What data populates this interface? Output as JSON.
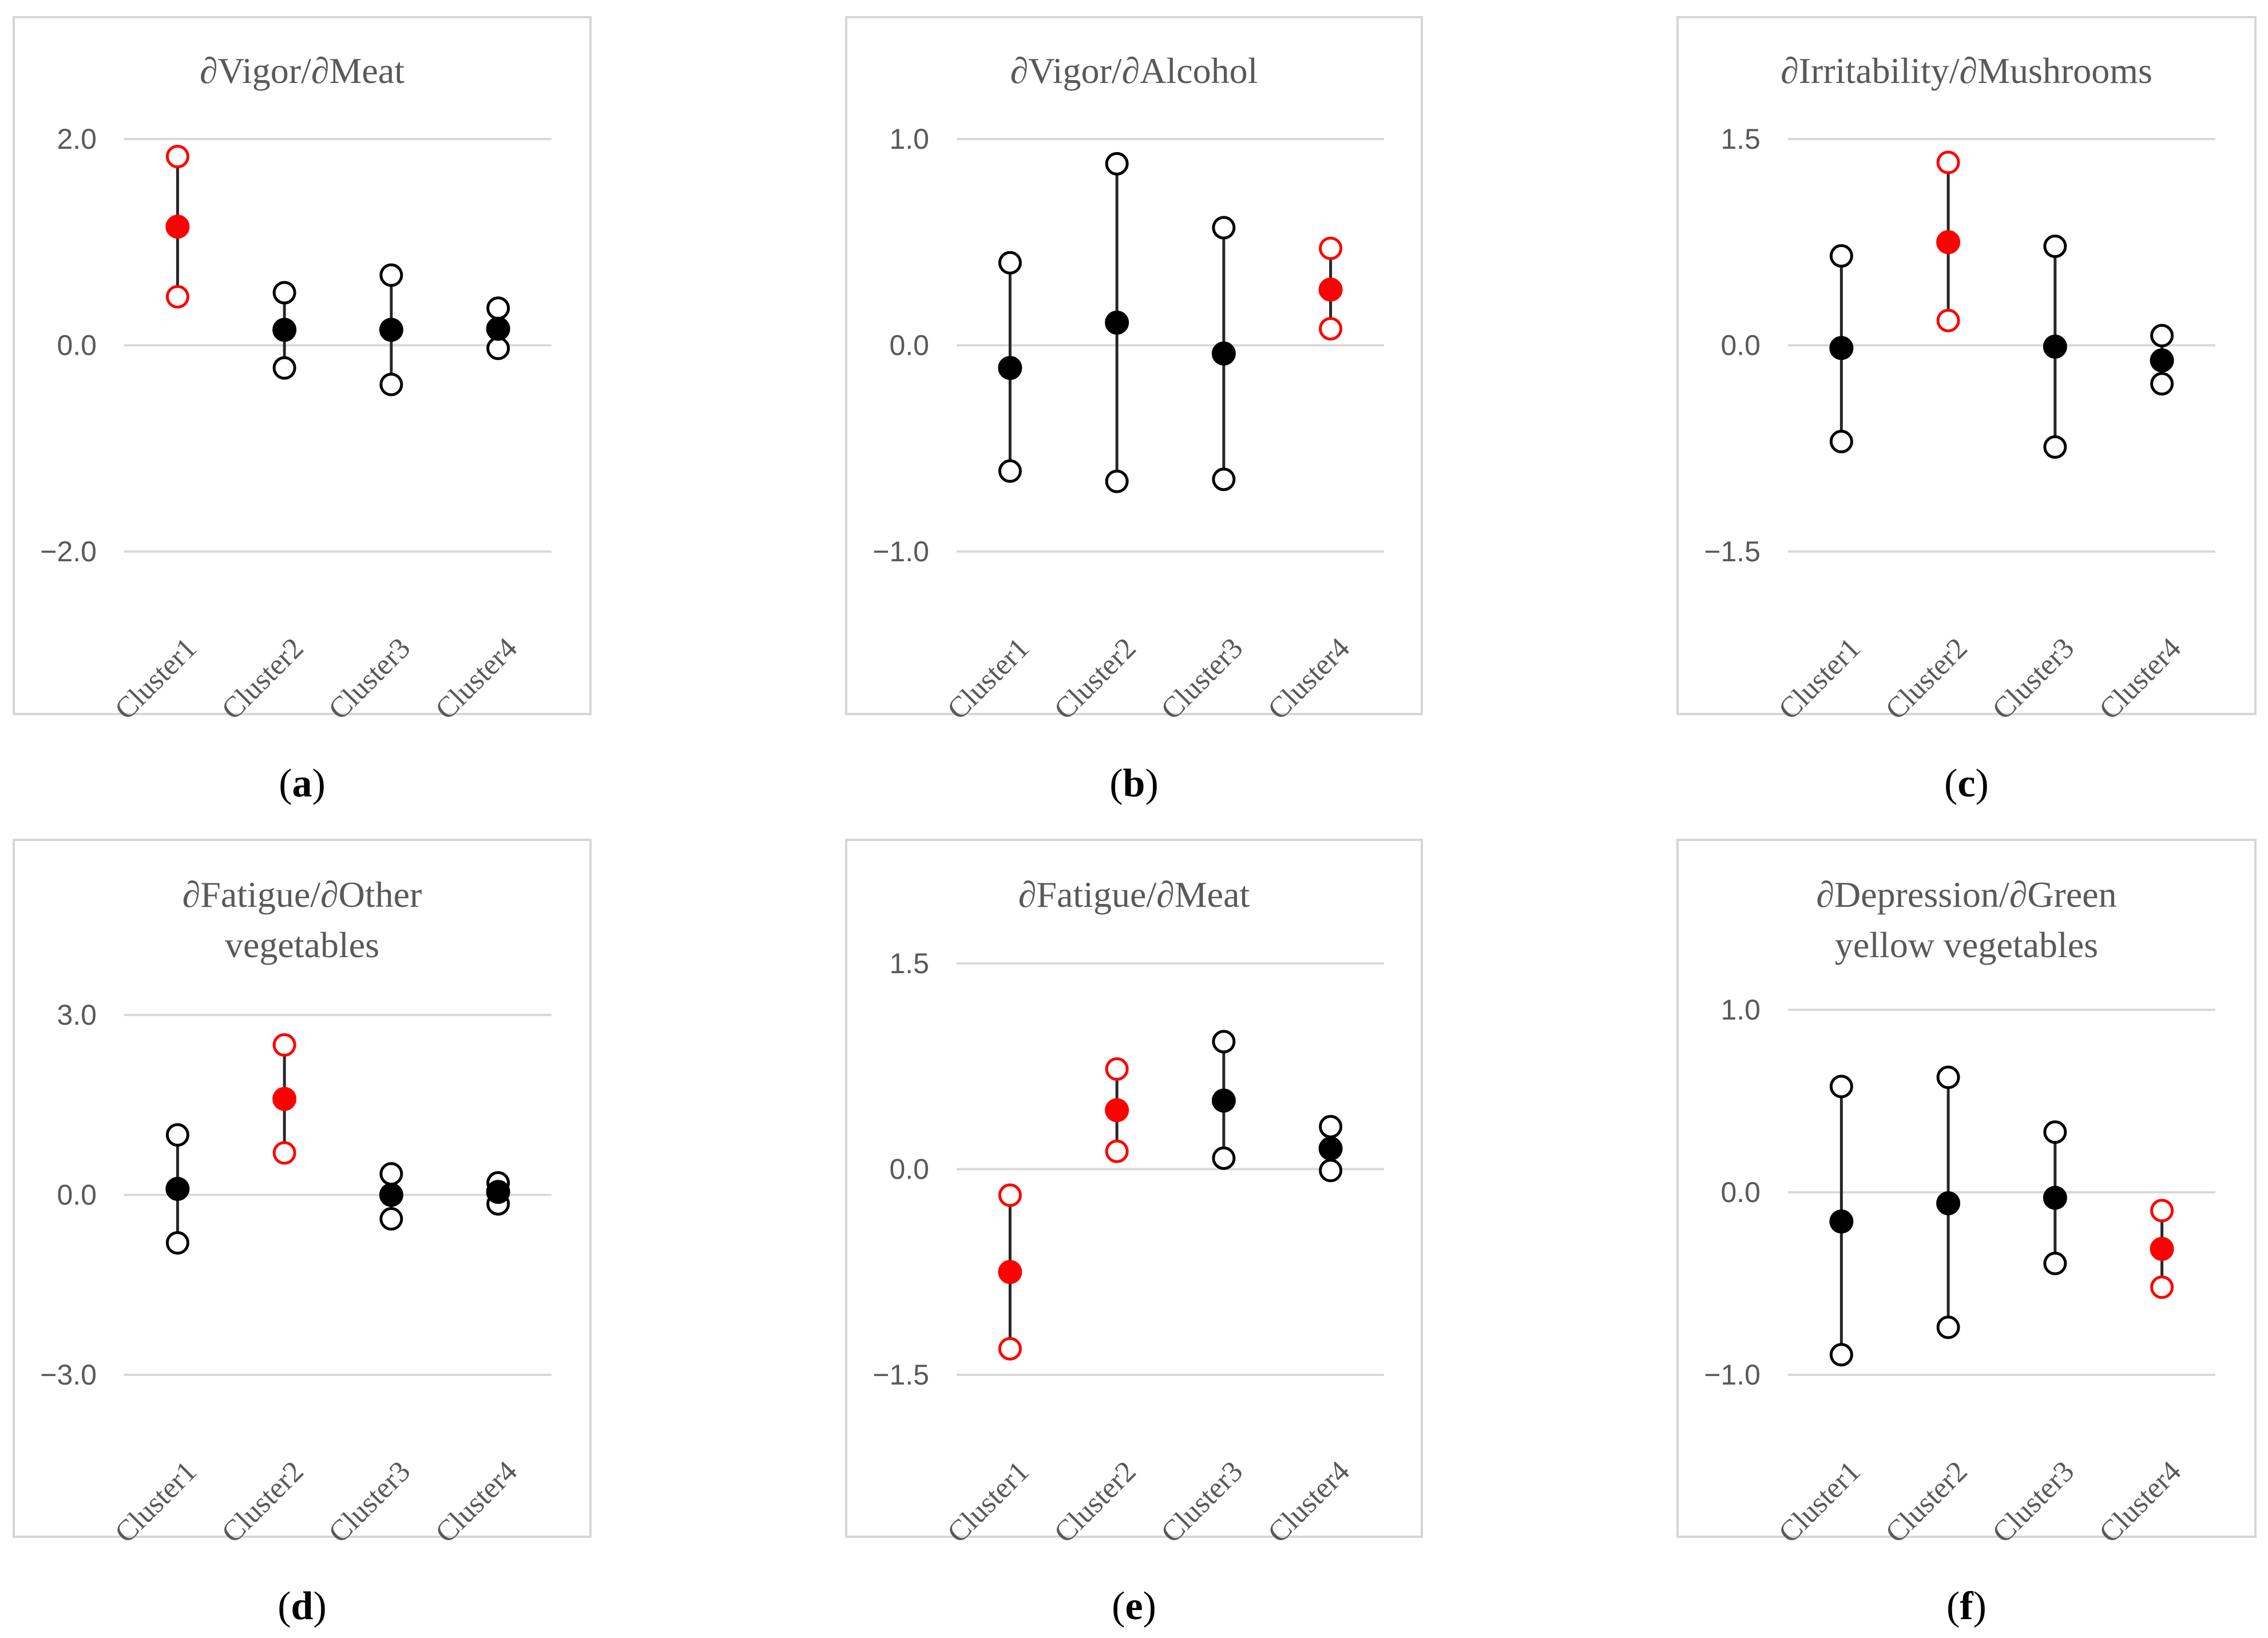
{
  "colors": {
    "highlight": "#ff0000",
    "normal": "#000000",
    "gridline": "#d9d9d9",
    "frame": "#d6d6d6",
    "text": "#595959"
  },
  "chart_data": [
    {
      "type": "scatter",
      "caption": "a",
      "title": [
        "∂Vigor/∂Meat"
      ],
      "categories": [
        "Cluster1",
        "Cluster2",
        "Cluster3",
        "Cluster4"
      ],
      "yticks": [
        2.0,
        0.0,
        -2.0
      ],
      "ytick_labels": [
        "2.0",
        "0.0",
        "−2.0"
      ],
      "points": [
        {
          "category": "Cluster1",
          "estimate": 1.15,
          "upper": 1.83,
          "lower": 0.47,
          "highlight": true
        },
        {
          "category": "Cluster2",
          "estimate": 0.15,
          "upper": 0.51,
          "lower": -0.22,
          "highlight": false
        },
        {
          "category": "Cluster3",
          "estimate": 0.15,
          "upper": 0.68,
          "lower": -0.38,
          "highlight": false
        },
        {
          "category": "Cluster4",
          "estimate": 0.16,
          "upper": 0.36,
          "lower": -0.03,
          "highlight": false
        }
      ]
    },
    {
      "type": "scatter",
      "caption": "b",
      "title": [
        "∂Vigor/∂Alcohol"
      ],
      "categories": [
        "Cluster1",
        "Cluster2",
        "Cluster3",
        "Cluster4"
      ],
      "yticks": [
        1.0,
        0.0,
        -1.0
      ],
      "ytick_labels": [
        "1.0",
        "0.0",
        "−1.0"
      ],
      "points": [
        {
          "category": "Cluster1",
          "estimate": -0.11,
          "upper": 0.4,
          "lower": -0.61,
          "highlight": false
        },
        {
          "category": "Cluster2",
          "estimate": 0.11,
          "upper": 0.88,
          "lower": -0.66,
          "highlight": false
        },
        {
          "category": "Cluster3",
          "estimate": -0.04,
          "upper": 0.57,
          "lower": -0.65,
          "highlight": false
        },
        {
          "category": "Cluster4",
          "estimate": 0.27,
          "upper": 0.47,
          "lower": 0.08,
          "highlight": true
        }
      ]
    },
    {
      "type": "scatter",
      "caption": "c",
      "title": [
        "∂Irritability/∂Mushrooms"
      ],
      "categories": [
        "Cluster1",
        "Cluster2",
        "Cluster3",
        "Cluster4"
      ],
      "yticks": [
        1.5,
        0.0,
        -1.5
      ],
      "ytick_labels": [
        "1.5",
        "0.0",
        "−1.5"
      ],
      "points": [
        {
          "category": "Cluster1",
          "estimate": -0.02,
          "upper": 0.65,
          "lower": -0.7,
          "highlight": false
        },
        {
          "category": "Cluster2",
          "estimate": 0.75,
          "upper": 1.33,
          "lower": 0.18,
          "highlight": true
        },
        {
          "category": "Cluster3",
          "estimate": -0.01,
          "upper": 0.72,
          "lower": -0.74,
          "highlight": false
        },
        {
          "category": "Cluster4",
          "estimate": -0.11,
          "upper": 0.07,
          "lower": -0.28,
          "highlight": false
        }
      ]
    },
    {
      "type": "scatter",
      "caption": "d",
      "title": [
        "∂Fatigue/∂Other",
        "vegetables"
      ],
      "categories": [
        "Cluster1",
        "Cluster2",
        "Cluster3",
        "Cluster4"
      ],
      "yticks": [
        3.0,
        0.0,
        -3.0
      ],
      "ytick_labels": [
        "3.0",
        "0.0",
        "−3.0"
      ],
      "points": [
        {
          "category": "Cluster1",
          "estimate": 0.1,
          "upper": 1.0,
          "lower": -0.8,
          "highlight": false
        },
        {
          "category": "Cluster2",
          "estimate": 1.6,
          "upper": 2.5,
          "lower": 0.7,
          "highlight": true
        },
        {
          "category": "Cluster3",
          "estimate": 0.0,
          "upper": 0.35,
          "lower": -0.4,
          "highlight": false
        },
        {
          "category": "Cluster4",
          "estimate": 0.05,
          "upper": 0.2,
          "lower": -0.15,
          "highlight": false
        }
      ]
    },
    {
      "type": "scatter",
      "caption": "e",
      "title": [
        "∂Fatigue/∂Meat"
      ],
      "categories": [
        "Cluster1",
        "Cluster2",
        "Cluster3",
        "Cluster4"
      ],
      "yticks": [
        1.5,
        0.0,
        -1.5
      ],
      "ytick_labels": [
        "1.5",
        "0.0",
        "−1.5"
      ],
      "points": [
        {
          "category": "Cluster1",
          "estimate": -0.75,
          "upper": -0.19,
          "lower": -1.31,
          "highlight": true
        },
        {
          "category": "Cluster2",
          "estimate": 0.43,
          "upper": 0.73,
          "lower": 0.13,
          "highlight": true
        },
        {
          "category": "Cluster3",
          "estimate": 0.5,
          "upper": 0.93,
          "lower": 0.08,
          "highlight": false
        },
        {
          "category": "Cluster4",
          "estimate": 0.15,
          "upper": 0.31,
          "lower": -0.01,
          "highlight": false
        }
      ]
    },
    {
      "type": "scatter",
      "caption": "f",
      "title": [
        "∂Depression/∂Green",
        "yellow vegetables"
      ],
      "categories": [
        "Cluster1",
        "Cluster2",
        "Cluster3",
        "Cluster4"
      ],
      "yticks": [
        1.0,
        0.0,
        -1.0
      ],
      "ytick_labels": [
        "1.0",
        "0.0",
        "−1.0"
      ],
      "points": [
        {
          "category": "Cluster1",
          "estimate": -0.16,
          "upper": 0.58,
          "lower": -0.89,
          "highlight": false
        },
        {
          "category": "Cluster2",
          "estimate": -0.06,
          "upper": 0.63,
          "lower": -0.74,
          "highlight": false
        },
        {
          "category": "Cluster3",
          "estimate": -0.03,
          "upper": 0.33,
          "lower": -0.39,
          "highlight": false
        },
        {
          "category": "Cluster4",
          "estimate": -0.31,
          "upper": -0.1,
          "lower": -0.52,
          "highlight": true
        }
      ]
    }
  ]
}
